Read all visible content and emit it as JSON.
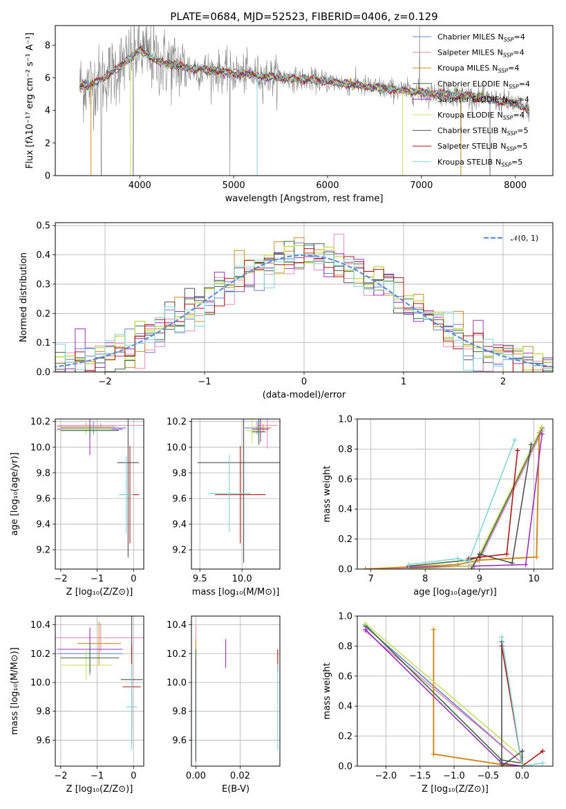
{
  "figure": {
    "title": "PLATE=0684, MJD=52523, FIBERID=0406, z=0.129"
  },
  "colors": {
    "Chabrier MILES": "#6a7fd2",
    "Salpeter MILES": "#e68ab8",
    "Kroupa MILES": "#d08a20",
    "Chabrier ELODIE": "#3a6b3a",
    "Salpeter ELODIE": "#9a2fc0",
    "Kroupa ELODIE": "#c8e060",
    "Chabrier STELIB": "#505050",
    "Salpeter STELIB": "#b01515",
    "Kroupa STELIB": "#7fd6d9",
    "normal": "#5b8fd6",
    "data": "#808080"
  },
  "chart_data": [
    {
      "id": "spectrum",
      "type": "line",
      "title": "PLATE=0684, MJD=52523, FIBERID=0406, z=0.129",
      "xlabel": "wavelength [Angstrom, rest frame]",
      "ylabel": "Flux [fλ10⁻¹⁷ erg cm⁻² s⁻¹ A⁻¹]",
      "xlim": [
        3100,
        8400
      ],
      "ylim": [
        0,
        9.2
      ],
      "xticks": [
        "4000",
        "5000",
        "6000",
        "7000",
        "8000"
      ],
      "xtick_values": [
        4000,
        5000,
        6000,
        7000,
        8000
      ],
      "yticks": [
        "0",
        "2",
        "4",
        "6",
        "8"
      ],
      "ytick_values": [
        0,
        2,
        4,
        6,
        8
      ],
      "legend_loc": "upper right",
      "legend": [
        {
          "name": "Chabrier MILES",
          "suffix": "=4"
        },
        {
          "name": "Salpeter MILES",
          "suffix": "=4"
        },
        {
          "name": "Kroupa MILES",
          "suffix": "=4"
        },
        {
          "name": "Chabrier ELODIE",
          "suffix": "=4"
        },
        {
          "name": "Salpeter ELODIE",
          "suffix": "=4"
        },
        {
          "name": "Kroupa ELODIE",
          "suffix": "=4"
        },
        {
          "name": "Chabrier STELIB",
          "suffix": "=5"
        },
        {
          "name": "Salpeter STELIB",
          "suffix": "=5"
        },
        {
          "name": "Kroupa STELIB",
          "suffix": "=5"
        }
      ],
      "legend_nssp": "N",
      "legend_nssp_sub": "SSP",
      "continuum": {
        "x": [
          3350,
          3500,
          3700,
          3900,
          4000,
          4200,
          4500,
          5000,
          5500,
          6000,
          6500,
          7000,
          7500,
          8000,
          8150
        ],
        "y": [
          5.5,
          5.6,
          6.3,
          7.2,
          7.7,
          7.0,
          6.6,
          6.3,
          6.0,
          5.8,
          5.4,
          5.1,
          4.9,
          4.4,
          4.0
        ]
      }
    },
    {
      "id": "residuals",
      "type": "histogram",
      "xlabel": "(data-model)/error",
      "ylabel": "Normed distribution",
      "xlim": [
        -2.5,
        2.5
      ],
      "ylim": [
        0,
        0.51
      ],
      "xticks": [
        "−2",
        "−1",
        "0",
        "1",
        "2"
      ],
      "xtick_values": [
        -2,
        -1,
        0,
        1,
        2
      ],
      "yticks": [
        "0.0",
        "0.1",
        "0.2",
        "0.3",
        "0.4",
        "0.5"
      ],
      "ytick_values": [
        0,
        0.1,
        0.2,
        0.3,
        0.4,
        0.5
      ],
      "legend": "𝒩(0, 1)",
      "bin_width": 0.1
    },
    {
      "id": "age_vs_Z",
      "type": "errorbar",
      "xlabel": "Z [log₁₀(Z/Z⊙)]",
      "ylabel": "age  [log₁₀(age/yr)]",
      "xlim": [
        -2.15,
        0.28
      ],
      "ylim": [
        9.05,
        10.22
      ],
      "xticks": [
        "−2",
        "−1",
        "0"
      ],
      "xtick_values": [
        -2,
        -1,
        0
      ],
      "yticks": [
        "9.2",
        "9.4",
        "9.6",
        "9.8",
        "10.0",
        "10.2"
      ],
      "ytick_values": [
        9.2,
        9.4,
        9.6,
        9.8,
        10.0,
        10.2
      ],
      "points": [
        {
          "model": "Chabrier MILES",
          "x": -1.1,
          "xerr": 0.9,
          "y": 10.15,
          "yerr": 0.05
        },
        {
          "model": "Salpeter MILES",
          "x": -0.9,
          "xerr": 1.2,
          "y": 10.17,
          "yerr": 0.02
        },
        {
          "model": "Kroupa MILES",
          "x": -1.3,
          "xerr": 0.8,
          "y": 10.16,
          "yerr": 0.03
        },
        {
          "model": "Salpeter ELODIE",
          "x": -1.2,
          "xerr": 0.9,
          "y": 10.14,
          "yerr": 0.2
        },
        {
          "model": "Kroupa ELODIE",
          "x": -1.3,
          "xerr": 0.7,
          "y": 10.14,
          "yerr": 0.04
        },
        {
          "model": "Chabrier ELODIE",
          "x": -1.2,
          "xerr": 0.8,
          "y": 10.13,
          "yerr": 0.04
        },
        {
          "model": "Chabrier STELIB",
          "x": -0.15,
          "xerr": 0.3,
          "y": 9.88,
          "yerr": 0.74
        },
        {
          "model": "Salpeter STELIB",
          "x": -0.1,
          "xerr": 0.25,
          "y": 9.63,
          "yerr": 0.38
        },
        {
          "model": "Kroupa STELIB",
          "x": -0.2,
          "xerr": 0.2,
          "y": 9.63,
          "yerr": 0.3
        }
      ]
    },
    {
      "id": "age_vs_mass",
      "type": "errorbar",
      "xlabel": "mass [log₁₀(M/M⊙)]",
      "xlim": [
        9.4,
        10.45
      ],
      "ylim": [
        9.05,
        10.22
      ],
      "xticks": [
        "9.5",
        "10.0"
      ],
      "xtick_values": [
        9.5,
        10.0
      ],
      "yticks": [
        "9.2",
        "9.4",
        "9.6",
        "9.8",
        "10.0",
        "10.2"
      ],
      "ytick_values": [
        9.2,
        9.4,
        9.6,
        9.8,
        10.0,
        10.2
      ],
      "points": [
        {
          "model": "Chabrier MILES",
          "x": 10.18,
          "xerr": 0.15,
          "y": 10.15,
          "yerr": 0.05
        },
        {
          "model": "Salpeter MILES",
          "x": 10.3,
          "xerr": 0.12,
          "y": 10.17,
          "yerr": 0.18
        },
        {
          "model": "Kroupa MILES",
          "x": 10.25,
          "xerr": 0.1,
          "y": 10.15,
          "yerr": 0.03
        },
        {
          "model": "Salpeter ELODIE",
          "x": 10.22,
          "xerr": 0.1,
          "y": 10.14,
          "yerr": 0.1
        },
        {
          "model": "Kroupa ELODIE",
          "x": 10.12,
          "xerr": 0.08,
          "y": 10.13,
          "yerr": 0.1
        },
        {
          "model": "Chabrier ELODIE",
          "x": 10.2,
          "xerr": 0.08,
          "y": 10.12,
          "yerr": 0.1
        },
        {
          "model": "Chabrier STELIB",
          "x": 10.02,
          "xerr": 0.55,
          "y": 9.88,
          "yerr": 0.78
        },
        {
          "model": "Salpeter STELIB",
          "x": 9.98,
          "xerr": 0.3,
          "y": 9.63,
          "yerr": 0.38
        },
        {
          "model": "Kroupa STELIB",
          "x": 9.85,
          "xerr": 0.25,
          "y": 9.64,
          "yerr": 0.3
        }
      ]
    },
    {
      "id": "mass_weight_vs_age",
      "type": "line",
      "xlabel": "age  [log₁₀(age/yr)]",
      "ylabel": "mass weight",
      "xlim": [
        6.75,
        10.35
      ],
      "ylim": [
        0,
        1.0
      ],
      "xticks": [
        "7",
        "8",
        "9",
        "10"
      ],
      "xtick_values": [
        7,
        8,
        9,
        10
      ],
      "yticks": [
        "0.0",
        "0.2",
        "0.4",
        "0.6",
        "0.8",
        "1.0"
      ],
      "ytick_values": [
        0,
        0.2,
        0.4,
        0.6,
        0.8,
        1.0
      ],
      "series": [
        {
          "model": "Chabrier MILES",
          "x": [
            6.9,
            8.8,
            9.0,
            10.15
          ],
          "y": [
            0.0,
            0.02,
            0.06,
            0.92
          ]
        },
        {
          "model": "Salpeter MILES",
          "x": [
            6.9,
            8.8,
            9.0,
            10.15
          ],
          "y": [
            0.0,
            0.02,
            0.06,
            0.92
          ]
        },
        {
          "model": "Kroupa MILES",
          "x": [
            6.9,
            8.6,
            9.0,
            10.05,
            10.1
          ],
          "y": [
            0.0,
            0.03,
            0.06,
            0.08,
            0.91
          ]
        },
        {
          "model": "Chabrier ELODIE",
          "x": [
            7.7,
            8.8,
            9.0,
            10.15
          ],
          "y": [
            0.02,
            0.06,
            0.08,
            0.94
          ]
        },
        {
          "model": "Salpeter ELODIE",
          "x": [
            7.7,
            8.9,
            9.85,
            10.15
          ],
          "y": [
            0.01,
            0.02,
            0.03,
            0.9
          ]
        },
        {
          "model": "Kroupa ELODIE",
          "x": [
            7.7,
            8.85,
            9.0,
            10.15
          ],
          "y": [
            0.0,
            0.02,
            0.1,
            0.95
          ]
        },
        {
          "model": "Chabrier STELIB",
          "x": [
            8.85,
            9.0,
            9.6,
            9.95
          ],
          "y": [
            0.0,
            0.1,
            0.04,
            0.83
          ]
        },
        {
          "model": "Salpeter STELIB",
          "x": [
            8.8,
            9.5,
            9.7
          ],
          "y": [
            0.07,
            0.1,
            0.79
          ]
        },
        {
          "model": "Kroupa STELIB",
          "x": [
            7.7,
            8.6,
            8.8,
            9.65
          ],
          "y": [
            0.03,
            0.07,
            0.05,
            0.86
          ]
        }
      ]
    },
    {
      "id": "mass_vs_Z",
      "type": "errorbar",
      "xlabel": "Z [log₁₀(Z/Z⊙)]",
      "ylabel": "mass [log₁₀(M/M⊙)]",
      "xlim": [
        -2.15,
        0.28
      ],
      "ylim": [
        9.42,
        10.46
      ],
      "xticks": [
        "−2",
        "−1",
        "0"
      ],
      "xtick_values": [
        -2,
        -1,
        0
      ],
      "yticks": [
        "9.6",
        "9.8",
        "10.0",
        "10.2",
        "10.4"
      ],
      "ytick_values": [
        9.6,
        9.8,
        10.0,
        10.2,
        10.4
      ],
      "points": [
        {
          "model": "Chabrier MILES",
          "x": -1.2,
          "xerr": 0.9,
          "y": 10.2,
          "yerr": 0.15
        },
        {
          "model": "Salpeter MILES",
          "x": -0.9,
          "xerr": 1.4,
          "y": 10.31,
          "yerr": 0.1
        },
        {
          "model": "Kroupa MILES",
          "x": -0.95,
          "xerr": 0.6,
          "y": 10.27,
          "yerr": 0.15
        },
        {
          "model": "Salpeter ELODIE",
          "x": -1.2,
          "xerr": 0.9,
          "y": 10.23,
          "yerr": 0.15
        },
        {
          "model": "Kroupa ELODIE",
          "x": -1.3,
          "xerr": 0.7,
          "y": 10.12,
          "yerr": 0.1
        },
        {
          "model": "Chabrier ELODIE",
          "x": -1.2,
          "xerr": 0.8,
          "y": 10.17,
          "yerr": 0.1
        },
        {
          "model": "Chabrier STELIB",
          "x": -0.05,
          "xerr": 0.3,
          "y": 10.02,
          "yerr": 0.45
        },
        {
          "model": "Salpeter STELIB",
          "x": -0.05,
          "xerr": 0.25,
          "y": 9.97,
          "yerr": 0.3
        },
        {
          "model": "Kroupa STELIB",
          "x": -0.05,
          "xerr": 0.15,
          "y": 9.83,
          "yerr": 0.3
        }
      ]
    },
    {
      "id": "mass_vs_EBV",
      "type": "errorbar",
      "xlabel": "E(B-V)",
      "xlim": [
        -0.002,
        0.038
      ],
      "ylim": [
        9.42,
        10.46
      ],
      "xticks": [
        "0.00",
        "0.02"
      ],
      "xtick_values": [
        0.0,
        0.02
      ],
      "yticks": [
        "9.6",
        "9.8",
        "10.0",
        "10.2",
        "10.4"
      ],
      "ytick_values": [
        9.6,
        9.8,
        10.0,
        10.2,
        10.4
      ],
      "points": [
        {
          "model": "Salpeter MILES",
          "x": 0.0,
          "xerr": 0,
          "y": 10.3,
          "yerr": 0.1
        },
        {
          "model": "Kroupa MILES",
          "x": 0.0,
          "xerr": 0,
          "y": 10.2,
          "yerr": 0.1
        },
        {
          "model": "Chabrier ELODIE",
          "x": 0.0,
          "xerr": 0,
          "y": 9.85,
          "yerr": 0.38
        },
        {
          "model": "Chabrier STELIB",
          "x": 0.0,
          "xerr": 0,
          "y": 9.8,
          "yerr": 0.35
        },
        {
          "model": "Salpeter ELODIE",
          "x": 0.0135,
          "xerr": 0,
          "y": 10.2,
          "yerr": 0.1
        },
        {
          "model": "Salpeter STELIB",
          "x": 0.037,
          "xerr": 0,
          "y": 10.15,
          "yerr": 0.08
        },
        {
          "model": "Kroupa STELIB",
          "x": 0.037,
          "xerr": 0,
          "y": 9.83,
          "yerr": 0.3
        }
      ]
    },
    {
      "id": "mass_weight_vs_Z",
      "type": "line",
      "xlabel": "Z [log₁₀(Z/Z⊙)]",
      "ylabel": "mass weight",
      "xlim": [
        -2.42,
        0.45
      ],
      "ylim": [
        0,
        1.0
      ],
      "xticks": [
        "−2.0",
        "−1.5",
        "−1.0",
        "−0.5",
        "0.0"
      ],
      "xtick_values": [
        -2.0,
        -1.5,
        -1.0,
        -0.5,
        0.0
      ],
      "yticks": [
        "0.0",
        "0.2",
        "0.4",
        "0.6",
        "0.8",
        "1.0"
      ],
      "ytick_values": [
        0,
        0.2,
        0.4,
        0.6,
        0.8,
        1.0
      ],
      "series": [
        {
          "model": "Chabrier MILES",
          "x": [
            -2.3,
            0.0,
            0.0
          ],
          "y": [
            0.93,
            0.02,
            0.0
          ]
        },
        {
          "model": "Salpeter MILES",
          "x": [
            -2.3,
            0.0
          ],
          "y": [
            0.9,
            0.02
          ]
        },
        {
          "model": "Kroupa MILES",
          "x": [
            -1.3,
            -1.3,
            -0.3,
            0.0
          ],
          "y": [
            0.91,
            0.08,
            0.01,
            0.0
          ]
        },
        {
          "model": "Chabrier ELODIE",
          "x": [
            -2.3,
            -0.3,
            0.0
          ],
          "y": [
            0.94,
            0.04,
            0.02
          ]
        },
        {
          "model": "Salpeter ELODIE",
          "x": [
            -2.3,
            -0.3,
            0.0
          ],
          "y": [
            0.91,
            0.02,
            0.0
          ]
        },
        {
          "model": "Kroupa ELODIE",
          "x": [
            -2.3,
            0.0,
            0.0
          ],
          "y": [
            0.95,
            0.06,
            0.02
          ]
        },
        {
          "model": "Chabrier STELIB",
          "x": [
            -0.3,
            -0.3,
            0.0,
            0.0
          ],
          "y": [
            0.83,
            0.0,
            0.1,
            0.0
          ]
        },
        {
          "model": "Salpeter STELIB",
          "x": [
            -0.3,
            0.0,
            0.3
          ],
          "y": [
            0.8,
            0.0,
            0.1
          ]
        },
        {
          "model": "Kroupa STELIB",
          "x": [
            -0.3,
            0.0,
            0.3
          ],
          "y": [
            0.86,
            0.0,
            0.02
          ]
        }
      ]
    }
  ]
}
